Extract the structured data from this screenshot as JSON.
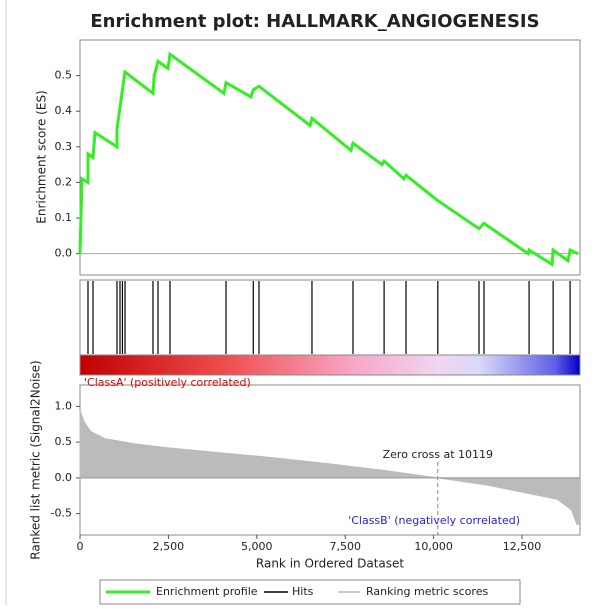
{
  "chart_data": {
    "type": "enrichment",
    "title": "Enrichment plot: HALLMARK_ANGIOGENESIS",
    "xlabel": "Rank in Ordered Dataset",
    "xlim": [
      0,
      14140
    ],
    "xticks": [
      0,
      {
        "value": 2500,
        "label": "2,500"
      },
      {
        "value": 5000,
        "label": "5,000"
      },
      {
        "value": 7500,
        "label": "7,500"
      },
      {
        "value": 10000,
        "label": "10,000"
      },
      {
        "value": 12500,
        "label": "12,500"
      }
    ],
    "es": {
      "ylabel": "Enrichment score (ES)",
      "ylim": [
        -0.06,
        0.6
      ],
      "yticks": [
        0.0,
        0.1,
        0.2,
        0.3,
        0.4,
        0.5
      ],
      "ytick_labels": [
        "0.0",
        "0.1",
        "0.2",
        "0.3",
        "0.4",
        "0.5"
      ],
      "name": "Enrichment profile",
      "color": "#33ee22",
      "x": [
        0,
        57,
        226,
        226,
        368,
        424,
        1046,
        1046,
        1131,
        1200,
        1273,
        2064,
        2100,
        2206,
        2489,
        2545,
        4072,
        4130,
        4836,
        4900,
        5062,
        6505,
        6560,
        7664,
        7720,
        8541,
        8600,
        9163,
        9220,
        10100,
        11284,
        11425,
        12670,
        12700,
        13348,
        13380,
        13800,
        13860,
        14083
      ],
      "values": [
        0,
        0.21,
        0.2,
        0.28,
        0.27,
        0.34,
        0.3,
        0.35,
        0.41,
        0.46,
        0.51,
        0.45,
        0.5,
        0.54,
        0.52,
        0.56,
        0.45,
        0.48,
        0.44,
        0.46,
        0.47,
        0.36,
        0.38,
        0.29,
        0.31,
        0.25,
        0.26,
        0.21,
        0.22,
        0.15,
        0.07,
        0.085,
        0.0,
        0.01,
        -0.03,
        0.01,
        -0.02,
        0.01,
        0.0
      ]
    },
    "hits": {
      "name": "Hits",
      "color": "#000000",
      "x": [
        226,
        368,
        1046,
        1131,
        1200,
        1273,
        2064,
        2206,
        2545,
        4130,
        4900,
        5062,
        6560,
        7720,
        8600,
        9220,
        10119,
        11284,
        11425,
        12700,
        13380,
        13860
      ]
    },
    "metric": {
      "ylabel": "Ranked list metric (Signal2Noise)",
      "ylim": [
        -0.8,
        1.3
      ],
      "yticks": [
        -0.5,
        0.0,
        0.5,
        1.0
      ],
      "ytick_labels": [
        "-0.5",
        "0.0",
        "0.5",
        "1.0"
      ],
      "name": "Ranking metric scores",
      "color": "#bbbbbb",
      "x": [
        0,
        100,
        300,
        700,
        1500,
        2500,
        4000,
        5500,
        7000,
        8500,
        10119,
        11500,
        12500,
        13500,
        13900,
        14050,
        14100
      ],
      "values": [
        0.95,
        0.8,
        0.65,
        0.55,
        0.48,
        0.42,
        0.35,
        0.28,
        0.2,
        0.11,
        0,
        -0.1,
        -0.2,
        -0.3,
        -0.45,
        -0.65,
        -0.65
      ],
      "zero_cross": 10119,
      "zero_cross_label": "Zero cross at 10119",
      "pos_label": "'ClassA' (positively correlated)",
      "neg_label": "'ClassB' (negatively correlated)"
    }
  }
}
